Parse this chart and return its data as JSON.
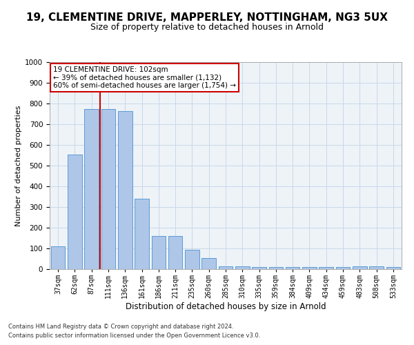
{
  "title": "19, CLEMENTINE DRIVE, MAPPERLEY, NOTTINGHAM, NG3 5UX",
  "subtitle": "Size of property relative to detached houses in Arnold",
  "xlabel": "Distribution of detached houses by size in Arnold",
  "ylabel": "Number of detached properties",
  "categories": [
    "37sqm",
    "62sqm",
    "87sqm",
    "111sqm",
    "136sqm",
    "161sqm",
    "186sqm",
    "211sqm",
    "235sqm",
    "260sqm",
    "285sqm",
    "310sqm",
    "335sqm",
    "359sqm",
    "384sqm",
    "409sqm",
    "434sqm",
    "459sqm",
    "483sqm",
    "508sqm",
    "533sqm"
  ],
  "values": [
    110,
    555,
    775,
    775,
    765,
    340,
    160,
    160,
    95,
    55,
    15,
    15,
    10,
    10,
    10,
    10,
    10,
    10,
    15,
    15,
    10
  ],
  "bar_color": "#aec6e8",
  "bar_edge_color": "#5b9bd5",
  "grid_color": "#c8d8e8",
  "background_color": "#eef3f8",
  "vline_index": 2.5,
  "vline_color": "#cc0000",
  "annotation_text": "19 CLEMENTINE DRIVE: 102sqm\n← 39% of detached houses are smaller (1,132)\n60% of semi-detached houses are larger (1,754) →",
  "annotation_box_color": "#ffffff",
  "annotation_box_edge": "#cc0000",
  "footer1": "Contains HM Land Registry data © Crown copyright and database right 2024.",
  "footer2": "Contains public sector information licensed under the Open Government Licence v3.0.",
  "ylim": [
    0,
    1000
  ],
  "title_fontsize": 11,
  "subtitle_fontsize": 9,
  "tick_fontsize": 7
}
